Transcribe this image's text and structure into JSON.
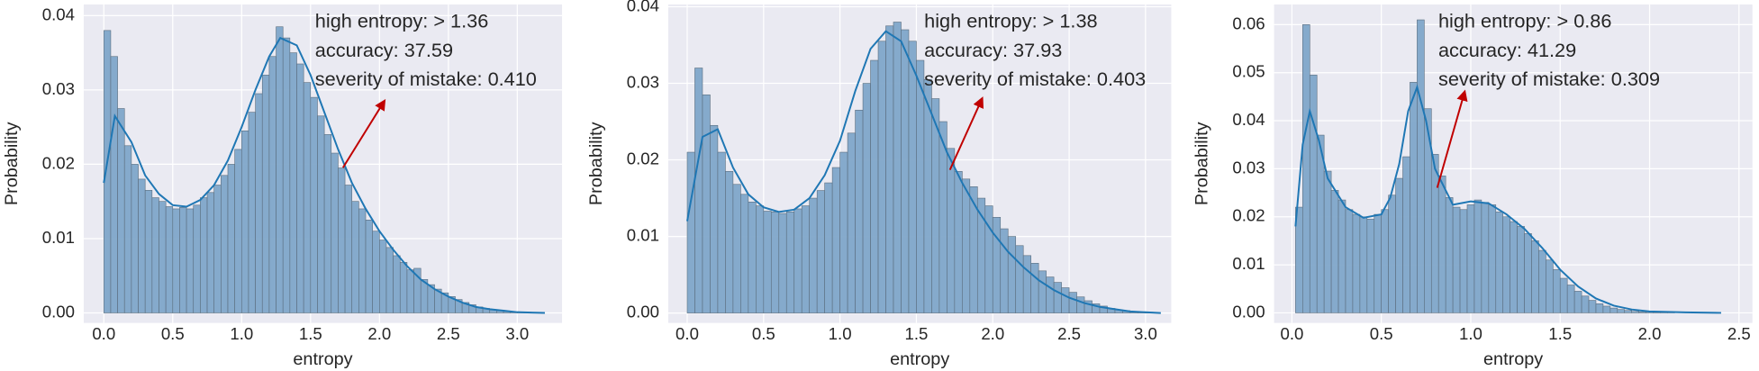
{
  "chart_data": [
    {
      "type": "histogram",
      "xlabel": "entropy",
      "ylabel": "Probability",
      "color": "#7fa6c9",
      "edgecolor": "#5c6f80",
      "grid": true,
      "background": "#eaeaf2",
      "bins": [
        0,
        0.05,
        0.1,
        0.15,
        0.2,
        0.25,
        0.3,
        0.35,
        0.4,
        0.45,
        0.5,
        0.55,
        0.6,
        0.65,
        0.7,
        0.75,
        0.8,
        0.85,
        0.9,
        0.95,
        1.0,
        1.05,
        1.1,
        1.15,
        1.2,
        1.25,
        1.3,
        1.35,
        1.4,
        1.45,
        1.5,
        1.55,
        1.6,
        1.65,
        1.7,
        1.75,
        1.8,
        1.85,
        1.9,
        1.95,
        2.0,
        2.05,
        2.1,
        2.15,
        2.2,
        2.25,
        2.3,
        2.35,
        2.4,
        2.45,
        2.5,
        2.55,
        2.6,
        2.65,
        2.7,
        2.75,
        2.8,
        2.85,
        2.9,
        2.95,
        3.0,
        3.05,
        3.1,
        3.15,
        3.2
      ],
      "values": [
        0.038,
        0.0345,
        0.0275,
        0.0225,
        0.02,
        0.018,
        0.0165,
        0.0155,
        0.015,
        0.0143,
        0.014,
        0.0142,
        0.014,
        0.0145,
        0.0155,
        0.0162,
        0.0172,
        0.0185,
        0.02,
        0.022,
        0.0245,
        0.027,
        0.0295,
        0.032,
        0.0345,
        0.0385,
        0.037,
        0.035,
        0.0335,
        0.031,
        0.029,
        0.0265,
        0.024,
        0.0215,
        0.0195,
        0.0172,
        0.015,
        0.014,
        0.0125,
        0.011,
        0.0098,
        0.0088,
        0.0077,
        0.0068,
        0.0058,
        0.006,
        0.0045,
        0.0038,
        0.0032,
        0.0027,
        0.0022,
        0.0018,
        0.0014,
        0.0011,
        0.0008,
        0.0006,
        0.0004,
        0.0003,
        0.0002,
        0.0001,
        0.0001,
        0.0001,
        0,
        0
      ],
      "kde": {
        "color": "#1f77b4",
        "x": [
          0,
          0.08,
          0.2,
          0.3,
          0.4,
          0.5,
          0.6,
          0.7,
          0.8,
          0.9,
          1.0,
          1.1,
          1.2,
          1.28,
          1.4,
          1.5,
          1.6,
          1.7,
          1.8,
          1.9,
          2.0,
          2.1,
          2.2,
          2.3,
          2.4,
          2.5,
          2.6,
          2.7,
          2.8,
          2.9,
          3.0,
          3.1,
          3.2
        ],
        "y": [
          0.0175,
          0.0265,
          0.023,
          0.0185,
          0.016,
          0.0145,
          0.0143,
          0.0152,
          0.0172,
          0.0205,
          0.025,
          0.03,
          0.0345,
          0.037,
          0.036,
          0.032,
          0.027,
          0.022,
          0.0175,
          0.014,
          0.011,
          0.0085,
          0.0063,
          0.0045,
          0.0032,
          0.0022,
          0.0014,
          0.0008,
          0.0005,
          0.0003,
          0.0001,
          5e-05,
          0
        ]
      },
      "xlim": [
        -0.146,
        3.325
      ],
      "ylim": [
        -0.00135,
        0.0415
      ],
      "xticks": [
        {
          "value": 0,
          "label": "0.0"
        },
        0.5,
        {
          "value": 1,
          "label": "1.0"
        },
        1.5,
        {
          "value": 2,
          "label": "2.0"
        },
        2.5,
        {
          "value": 3,
          "label": "3.0"
        }
      ],
      "yticks": [
        {
          "value": 0,
          "label": "0.00"
        },
        {
          "value": 0.01,
          "label": "0.01"
        },
        {
          "value": 0.02,
          "label": "0.02"
        },
        {
          "value": 0.03,
          "label": "0.03"
        },
        {
          "value": 0.04,
          "label": "0.04"
        }
      ],
      "annotations": [
        "high entropy: > 1.36",
        "accuracy: 37.59",
        "severity of mistake: 0.410"
      ],
      "arrow_color": "#c00000"
    },
    {
      "type": "histogram",
      "xlabel": "entropy",
      "ylabel": "Probability",
      "color": "#7fa6c9",
      "edgecolor": "#5c6f80",
      "grid": true,
      "background": "#eaeaf2",
      "bins": [
        0,
        0.05,
        0.1,
        0.15,
        0.2,
        0.25,
        0.3,
        0.35,
        0.4,
        0.45,
        0.5,
        0.55,
        0.6,
        0.65,
        0.7,
        0.75,
        0.8,
        0.85,
        0.9,
        0.95,
        1.0,
        1.05,
        1.1,
        1.15,
        1.2,
        1.25,
        1.3,
        1.35,
        1.4,
        1.45,
        1.5,
        1.55,
        1.6,
        1.65,
        1.7,
        1.75,
        1.8,
        1.85,
        1.9,
        1.95,
        2.0,
        2.05,
        2.1,
        2.15,
        2.2,
        2.25,
        2.3,
        2.35,
        2.4,
        2.45,
        2.5,
        2.55,
        2.6,
        2.65,
        2.7,
        2.75,
        2.8,
        2.85,
        2.9,
        2.95,
        3.0,
        3.05,
        3.1
      ],
      "values": [
        0.021,
        0.032,
        0.0285,
        0.0245,
        0.021,
        0.0185,
        0.0168,
        0.0155,
        0.0145,
        0.014,
        0.0133,
        0.0132,
        0.013,
        0.0132,
        0.0136,
        0.014,
        0.015,
        0.016,
        0.017,
        0.019,
        0.021,
        0.0235,
        0.0265,
        0.03,
        0.033,
        0.0355,
        0.0375,
        0.038,
        0.037,
        0.0355,
        0.033,
        0.0305,
        0.028,
        0.025,
        0.0215,
        0.0185,
        0.0175,
        0.0165,
        0.015,
        0.014,
        0.0125,
        0.011,
        0.01,
        0.0088,
        0.0075,
        0.0065,
        0.0055,
        0.0047,
        0.004,
        0.0033,
        0.0027,
        0.0021,
        0.0016,
        0.0012,
        0.0009,
        0.0006,
        0.0004,
        0.0003,
        0.0002,
        0.0001,
        0.0001,
        0
      ],
      "kde": {
        "color": "#1f77b4",
        "x": [
          0,
          0.1,
          0.2,
          0.3,
          0.4,
          0.5,
          0.6,
          0.7,
          0.8,
          0.9,
          1.0,
          1.1,
          1.2,
          1.3,
          1.4,
          1.5,
          1.6,
          1.7,
          1.8,
          1.9,
          2.0,
          2.1,
          2.2,
          2.3,
          2.4,
          2.5,
          2.6,
          2.7,
          2.8,
          2.9,
          3.0,
          3.1
        ],
        "y": [
          0.012,
          0.023,
          0.024,
          0.019,
          0.0155,
          0.0138,
          0.0132,
          0.0135,
          0.015,
          0.018,
          0.0225,
          0.029,
          0.0345,
          0.0368,
          0.0355,
          0.031,
          0.026,
          0.021,
          0.017,
          0.0135,
          0.0105,
          0.008,
          0.006,
          0.0043,
          0.003,
          0.002,
          0.0013,
          0.0008,
          0.0005,
          0.0002,
          0.0001,
          0
        ]
      },
      "xlim": [
        -0.124,
        3.168
      ],
      "ylim": [
        -0.0013,
        0.0403
      ],
      "xticks": [
        {
          "value": 0,
          "label": "0.0"
        },
        0.5,
        {
          "value": 1,
          "label": "1.0"
        },
        1.5,
        {
          "value": 2,
          "label": "2.0"
        },
        2.5,
        {
          "value": 3,
          "label": "3.0"
        }
      ],
      "yticks": [
        {
          "value": 0,
          "label": "0.00"
        },
        {
          "value": 0.01,
          "label": "0.01"
        },
        {
          "value": 0.02,
          "label": "0.02"
        },
        {
          "value": 0.03,
          "label": "0.03"
        },
        {
          "value": 0.04,
          "label": "0.04"
        }
      ],
      "annotations": [
        "high entropy: > 1.38",
        "accuracy: 37.93",
        "severity of mistake: 0.403"
      ],
      "arrow_color": "#c00000"
    },
    {
      "type": "histogram",
      "xlabel": "entropy",
      "ylabel": "Probability",
      "color": "#7fa6c9",
      "edgecolor": "#5c6f80",
      "grid": true,
      "background": "#eaeaf2",
      "bins": [
        0.02,
        0.06,
        0.1,
        0.14,
        0.18,
        0.22,
        0.26,
        0.3,
        0.34,
        0.38,
        0.42,
        0.46,
        0.5,
        0.54,
        0.58,
        0.62,
        0.66,
        0.7,
        0.74,
        0.78,
        0.82,
        0.86,
        0.9,
        0.94,
        0.98,
        1.02,
        1.06,
        1.1,
        1.14,
        1.18,
        1.22,
        1.26,
        1.3,
        1.34,
        1.38,
        1.42,
        1.46,
        1.5,
        1.54,
        1.58,
        1.62,
        1.66,
        1.7,
        1.74,
        1.78,
        1.82,
        1.86,
        1.9,
        1.94,
        1.98,
        2.02,
        2.06,
        2.1,
        2.14,
        2.18,
        2.22,
        2.26,
        2.3
      ],
      "values": [
        0.022,
        0.06,
        0.0495,
        0.037,
        0.0295,
        0.0255,
        0.0235,
        0.0215,
        0.0205,
        0.02,
        0.0195,
        0.0205,
        0.0215,
        0.0245,
        0.028,
        0.0325,
        0.048,
        0.061,
        0.0425,
        0.033,
        0.0285,
        0.024,
        0.022,
        0.0215,
        0.0225,
        0.0235,
        0.023,
        0.0225,
        0.021,
        0.02,
        0.019,
        0.018,
        0.0165,
        0.015,
        0.013,
        0.011,
        0.009,
        0.0072,
        0.0058,
        0.0045,
        0.0035,
        0.0026,
        0.0019,
        0.0014,
        0.001,
        0.0007,
        0.0005,
        0.0003,
        0.0002,
        0.0002,
        0.0001,
        0.0001,
        0.0001,
        0,
        0,
        0,
        0
      ],
      "kde": {
        "color": "#1f77b4",
        "x": [
          0.02,
          0.06,
          0.1,
          0.15,
          0.2,
          0.3,
          0.4,
          0.5,
          0.55,
          0.6,
          0.65,
          0.7,
          0.75,
          0.8,
          0.9,
          1.0,
          1.1,
          1.2,
          1.3,
          1.4,
          1.5,
          1.6,
          1.7,
          1.8,
          1.9,
          2.0,
          2.2,
          2.4
        ],
        "y": [
          0.018,
          0.035,
          0.042,
          0.036,
          0.028,
          0.022,
          0.0198,
          0.0205,
          0.024,
          0.031,
          0.042,
          0.047,
          0.04,
          0.03,
          0.0225,
          0.0232,
          0.0228,
          0.0205,
          0.0175,
          0.0135,
          0.009,
          0.0055,
          0.003,
          0.0015,
          0.0007,
          0.0003,
          0.0001,
          0
        ]
      },
      "xlim": [
        -0.1,
        2.575
      ],
      "ylim": [
        -0.0021,
        0.0642
      ],
      "xticks": [
        {
          "value": 0,
          "label": "0.0"
        },
        0.5,
        {
          "value": 1,
          "label": "1.0"
        },
        1.5,
        {
          "value": 2,
          "label": "2.0"
        },
        2.5
      ],
      "yticks": [
        {
          "value": 0,
          "label": "0.00"
        },
        {
          "value": 0.01,
          "label": "0.01"
        },
        {
          "value": 0.02,
          "label": "0.02"
        },
        {
          "value": 0.03,
          "label": "0.03"
        },
        {
          "value": 0.04,
          "label": "0.04"
        },
        {
          "value": 0.05,
          "label": "0.05"
        },
        {
          "value": 0.06,
          "label": "0.06"
        }
      ],
      "annotations": [
        "high entropy: > 0.86",
        "accuracy: 41.29",
        "severity of mistake: 0.309"
      ],
      "arrow_color": "#c00000"
    }
  ]
}
